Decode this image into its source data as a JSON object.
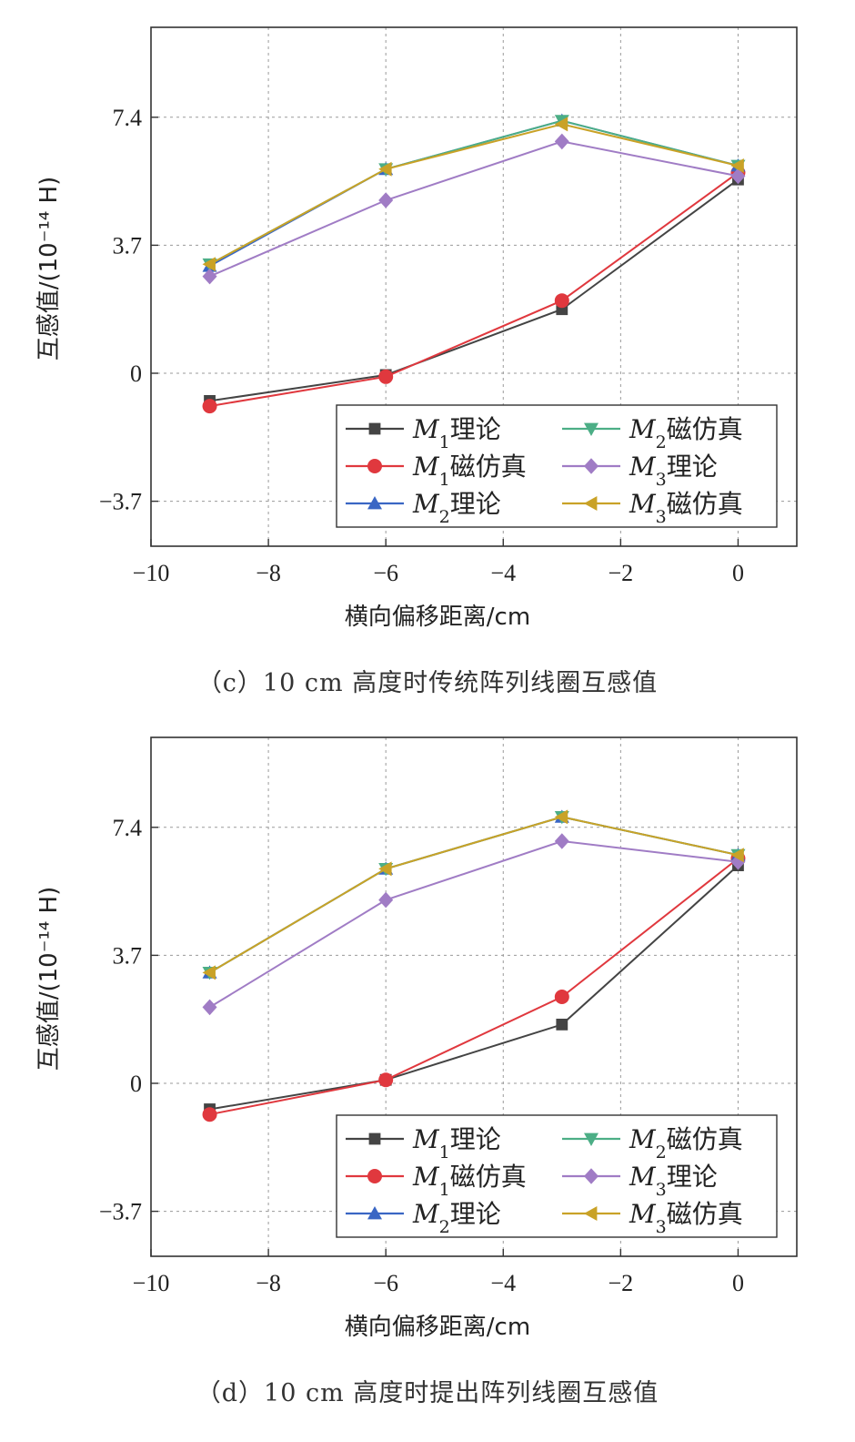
{
  "chart_data": [
    {
      "type": "line",
      "caption": "（c）10 cm 高度时传统阵列线圈互感值",
      "xlabel": "横向偏移距离/cm",
      "ylabel": "互感值/(10⁻¹⁴ H)",
      "xlim": [
        -10,
        1
      ],
      "ylim": [
        -5,
        10
      ],
      "xticks": [
        "−10",
        "−8",
        "−6",
        "−4",
        "−2",
        "0"
      ],
      "yticks": [
        "−3.7",
        "0",
        "3.7",
        "7.4"
      ],
      "grid": true,
      "legend_position": "bottom-right",
      "x": [
        -9,
        -6,
        -3,
        0
      ],
      "series": [
        {
          "name": "M1理论",
          "label_var": "M",
          "label_sub": "1",
          "label_suffix": "理论",
          "color": "#444444",
          "marker": "square",
          "values": [
            -0.8,
            -0.05,
            1.85,
            5.6
          ]
        },
        {
          "name": "M1磁仿真",
          "label_var": "M",
          "label_sub": "1",
          "label_suffix": "磁仿真",
          "color": "#e0383e",
          "marker": "circle",
          "values": [
            -0.95,
            -0.1,
            2.1,
            5.8
          ]
        },
        {
          "name": "M2理论",
          "label_var": "M",
          "label_sub": "2",
          "label_suffix": "理论",
          "color": "#3a66c4",
          "marker": "triangle-up",
          "values": [
            3.1,
            5.9,
            7.3,
            6.0
          ]
        },
        {
          "name": "M2磁仿真",
          "label_var": "M",
          "label_sub": "2",
          "label_suffix": "磁仿真",
          "color": "#4cae86",
          "marker": "triangle-down",
          "values": [
            3.15,
            5.9,
            7.3,
            6.0
          ]
        },
        {
          "name": "M3理论",
          "label_var": "M",
          "label_sub": "3",
          "label_suffix": "理论",
          "color": "#a07cc5",
          "marker": "diamond",
          "values": [
            2.8,
            5.0,
            6.7,
            5.7
          ]
        },
        {
          "name": "M3磁仿真",
          "label_var": "M",
          "label_sub": "3",
          "label_suffix": "磁仿真",
          "color": "#c9a227",
          "marker": "triangle-left",
          "values": [
            3.15,
            5.9,
            7.2,
            6.0
          ]
        }
      ]
    },
    {
      "type": "line",
      "caption": "（d）10 cm 高度时提出阵列线圈互感值",
      "xlabel": "横向偏移距离/cm",
      "ylabel": "互感值/(10⁻¹⁴ H)",
      "xlim": [
        -10,
        1
      ],
      "ylim": [
        -5,
        10
      ],
      "xticks": [
        "−10",
        "−8",
        "−6",
        "−4",
        "−2",
        "0"
      ],
      "yticks": [
        "−3.7",
        "0",
        "3.7",
        "7.4"
      ],
      "grid": true,
      "legend_position": "bottom-right",
      "x": [
        -9,
        -6,
        -3,
        0
      ],
      "series": [
        {
          "name": "M1理论",
          "label_var": "M",
          "label_sub": "1",
          "label_suffix": "理论",
          "color": "#444444",
          "marker": "square",
          "values": [
            -0.75,
            0.1,
            1.7,
            6.3
          ]
        },
        {
          "name": "M1磁仿真",
          "label_var": "M",
          "label_sub": "1",
          "label_suffix": "磁仿真",
          "color": "#e0383e",
          "marker": "circle",
          "values": [
            -0.9,
            0.1,
            2.5,
            6.5
          ]
        },
        {
          "name": "M2理论",
          "label_var": "M",
          "label_sub": "2",
          "label_suffix": "理论",
          "color": "#3a66c4",
          "marker": "triangle-up",
          "values": [
            3.2,
            6.2,
            7.7,
            6.6
          ]
        },
        {
          "name": "M2磁仿真",
          "label_var": "M",
          "label_sub": "2",
          "label_suffix": "磁仿真",
          "color": "#4cae86",
          "marker": "triangle-down",
          "values": [
            3.2,
            6.2,
            7.7,
            6.6
          ]
        },
        {
          "name": "M3理论",
          "label_var": "M",
          "label_sub": "3",
          "label_suffix": "理论",
          "color": "#a07cc5",
          "marker": "diamond",
          "values": [
            2.2,
            5.3,
            7.0,
            6.4
          ]
        },
        {
          "name": "M3磁仿真",
          "label_var": "M",
          "label_sub": "3",
          "label_suffix": "磁仿真",
          "color": "#c9a227",
          "marker": "triangle-left",
          "values": [
            3.2,
            6.2,
            7.7,
            6.6
          ]
        }
      ]
    }
  ]
}
